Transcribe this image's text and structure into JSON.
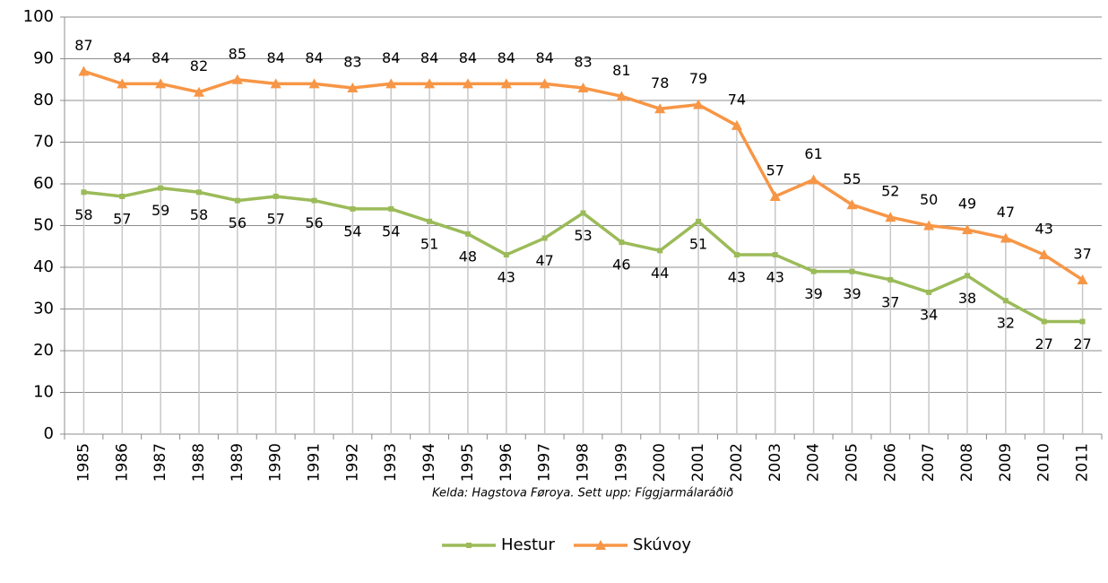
{
  "chart_data": {
    "type": "line",
    "categories": [
      "1985",
      "1986",
      "1987",
      "1988",
      "1989",
      "1990",
      "1991",
      "1992",
      "1993",
      "1994",
      "1995",
      "1996",
      "1997",
      "1998",
      "1999",
      "2000",
      "2001",
      "2002",
      "2003",
      "2004",
      "2005",
      "2006",
      "2007",
      "2008",
      "2009",
      "2010",
      "2011"
    ],
    "series": [
      {
        "name": "Hestur",
        "color": "#9bbb59",
        "marker": "square",
        "label_position": "below",
        "values": [
          58,
          57,
          59,
          58,
          56,
          57,
          56,
          54,
          54,
          51,
          48,
          43,
          47,
          53,
          46,
          44,
          51,
          43,
          43,
          39,
          39,
          37,
          34,
          38,
          32,
          27,
          27
        ]
      },
      {
        "name": "Skúvoy",
        "color": "#f79646",
        "marker": "triangle",
        "label_position": "above",
        "values": [
          87,
          84,
          84,
          82,
          85,
          84,
          84,
          83,
          84,
          84,
          84,
          84,
          84,
          83,
          81,
          78,
          79,
          74,
          57,
          61,
          55,
          52,
          50,
          49,
          47,
          43,
          37
        ]
      }
    ],
    "ylim": [
      0,
      100
    ],
    "yticks": [
      0,
      10,
      20,
      30,
      40,
      50,
      60,
      70,
      80,
      90,
      100
    ],
    "grid": true,
    "note": "Kelda: Hagstova Føroya. Sett upp: Fíggjarmálaráðið",
    "legend": "bottom"
  }
}
